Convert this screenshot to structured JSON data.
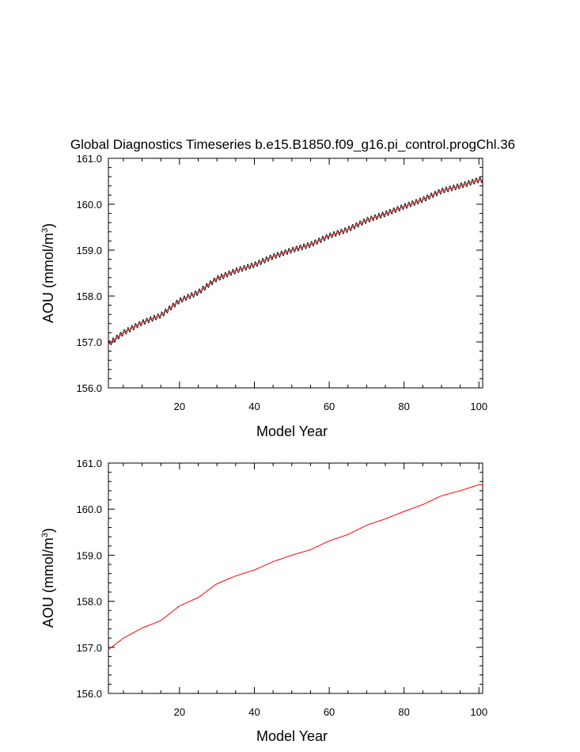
{
  "chart_data": [
    {
      "type": "line",
      "title": "Global Diagnostics Timeseries b.e15.B1850.f09_g16.pi_control.progChl.36",
      "xlabel": "Model Year",
      "ylabel": "AOU (mmol/m",
      "ylabel_sup": "3",
      "ylabel_tail": ")",
      "xlim": [
        1,
        101
      ],
      "ylim": [
        156.0,
        161.0
      ],
      "x_ticks": [
        "20",
        "40",
        "60",
        "80",
        "100"
      ],
      "y_ticks": [
        "156.0",
        "157.0",
        "158.0",
        "159.0",
        "160.0",
        "161.0"
      ],
      "series_style": "monthly-black-with-annual-red",
      "seasonal_amplitude": 0.06,
      "colors": {
        "monthly": "#000000",
        "annual": "#ff0000"
      },
      "trend_x": [
        1,
        5,
        10,
        15,
        20,
        25,
        30,
        35,
        40,
        45,
        50,
        55,
        60,
        65,
        70,
        75,
        80,
        85,
        90,
        95,
        100,
        101
      ],
      "trend_y": [
        156.95,
        157.2,
        157.42,
        157.58,
        157.9,
        158.08,
        158.38,
        158.55,
        158.68,
        158.86,
        159.0,
        159.12,
        159.31,
        159.45,
        159.65,
        159.79,
        159.95,
        160.1,
        160.29,
        160.4,
        160.53,
        160.53
      ]
    },
    {
      "type": "line",
      "title": "",
      "xlabel": "Model Year",
      "ylabel": "AOU (mmol/m",
      "ylabel_sup": "3",
      "ylabel_tail": ")",
      "xlim": [
        1,
        101
      ],
      "ylim": [
        156.0,
        161.0
      ],
      "x_ticks": [
        "20",
        "40",
        "60",
        "80",
        "100"
      ],
      "y_ticks": [
        "156.0",
        "157.0",
        "158.0",
        "159.0",
        "160.0",
        "161.0"
      ],
      "series_style": "annual-red",
      "colors": {
        "annual": "#ff0000"
      },
      "trend_x": [
        1,
        5,
        10,
        15,
        20,
        25,
        30,
        35,
        40,
        45,
        50,
        55,
        60,
        65,
        70,
        75,
        80,
        85,
        90,
        95,
        100,
        101
      ],
      "trend_y": [
        156.95,
        157.2,
        157.42,
        157.58,
        157.9,
        158.08,
        158.38,
        158.55,
        158.68,
        158.86,
        159.0,
        159.12,
        159.31,
        159.45,
        159.65,
        159.79,
        159.95,
        160.1,
        160.29,
        160.4,
        160.53,
        160.53
      ]
    }
  ]
}
